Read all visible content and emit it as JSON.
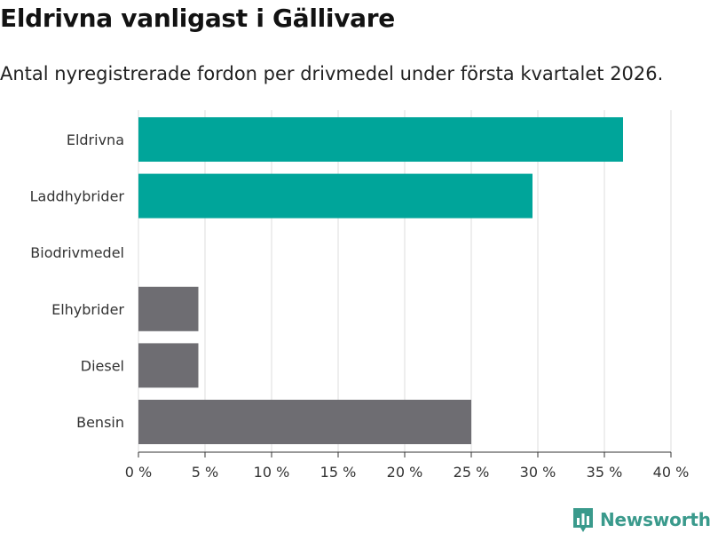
{
  "header": {
    "title": "Eldrivna vanligast i Gällivare",
    "subtitle": "Antal nyregistrerade fordon per drivmedel under första kvartalet 2026."
  },
  "brand": {
    "name": "Newsworthy",
    "color": "#3a9a8c"
  },
  "colors": {
    "highlight": "#00a59a",
    "default": "#6e6d72",
    "grid": "#dddddd",
    "axis": "#333333"
  },
  "chart_data": {
    "type": "bar",
    "orientation": "horizontal",
    "title": "Eldrivna vanligast i Gällivare",
    "subtitle": "Antal nyregistrerade fordon per drivmedel under första kvartalet 2026.",
    "categories": [
      "Eldrivna",
      "Laddhybrider",
      "Biodrivmedel",
      "Elhybrider",
      "Diesel",
      "Bensin"
    ],
    "values": [
      36.4,
      29.6,
      0,
      4.5,
      4.5,
      25.0
    ],
    "highlighted": [
      true,
      true,
      false,
      false,
      false,
      false
    ],
    "xlim": [
      0,
      40
    ],
    "xticks": [
      0,
      5,
      10,
      15,
      20,
      25,
      30,
      35,
      40
    ],
    "xtick_labels": [
      "0 %",
      "5 %",
      "10 %",
      "15 %",
      "20 %",
      "25 %",
      "30 %",
      "35 %",
      "40 %"
    ],
    "xlabel": "",
    "ylabel": "",
    "grid": "vertical"
  }
}
